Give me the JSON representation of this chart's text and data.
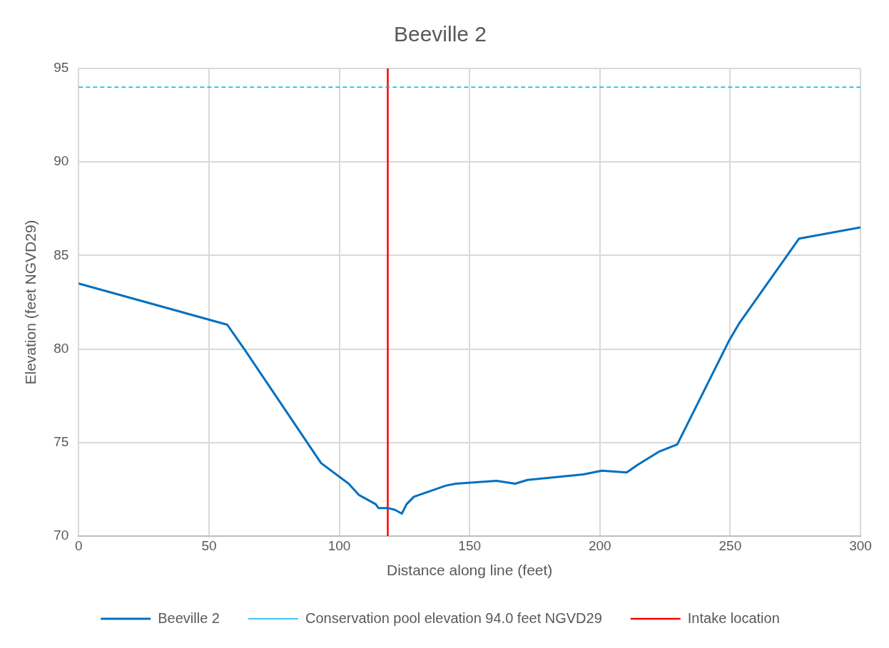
{
  "chart_data": {
    "type": "line",
    "title": "Beeville 2",
    "xlabel": "Distance along line (feet)",
    "ylabel": "Elevation (feet NGVD29)",
    "xlim": [
      0,
      300
    ],
    "xticks": [
      0,
      50,
      100,
      150,
      200,
      250,
      300
    ],
    "ylim": [
      70,
      95
    ],
    "yticks": [
      70,
      75,
      80,
      85,
      90,
      95
    ],
    "grid": true,
    "legend": "bottom",
    "marker": "none",
    "series": [
      {
        "name": "Beeville 2",
        "color": "#0070c0",
        "line_style": "solid",
        "x": [
          0,
          57,
          60.5,
          64,
          93,
          103.6,
          107.5,
          114,
          115,
          118.6,
          121.4,
          124,
          125.8,
          128.6,
          141,
          144.7,
          160.3,
          167.5,
          172.2,
          193.6,
          200.8,
          210.3,
          214.4,
          222.5,
          229.7,
          249.4,
          253.6,
          276.4,
          300
        ],
        "values": [
          83.5,
          81.3,
          80.6,
          79.9,
          73.9,
          72.8,
          72.2,
          71.7,
          71.5,
          71.5,
          71.4,
          71.2,
          71.7,
          72.1,
          72.7,
          72.8,
          72.95,
          72.8,
          73.0,
          73.3,
          73.5,
          73.4,
          73.8,
          74.5,
          74.9,
          80.4,
          81.4,
          85.9,
          86.5
        ]
      }
    ],
    "ref_lines": [
      {
        "axis": "y",
        "value": 94,
        "label": "Conservation pool elevation 94.0 feet NGVD29",
        "color": "#00b0f0",
        "line_style": "dashed"
      },
      {
        "axis": "x",
        "value": 118.6,
        "label": "Intake location",
        "color": "#ff0000",
        "line_style": "solid"
      }
    ]
  }
}
